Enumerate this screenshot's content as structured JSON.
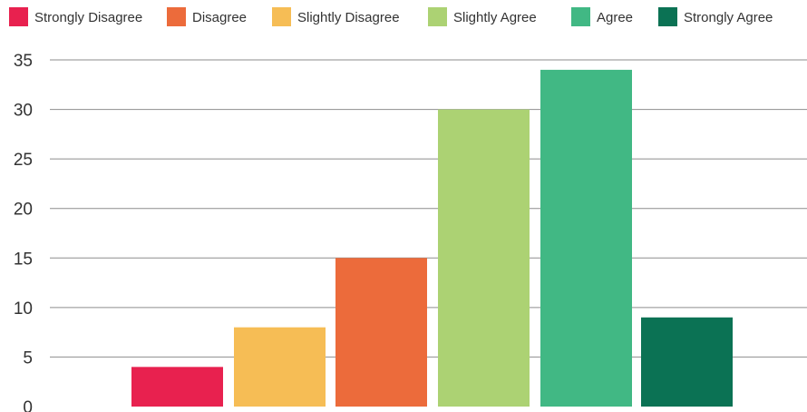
{
  "chart_data": {
    "type": "bar",
    "categories": [
      "Strongly Disagree",
      "Slightly Disagree",
      "Disagree",
      "Slightly Agree",
      "Agree",
      "Strongly Agree"
    ],
    "values": [
      4,
      8,
      15,
      30,
      34,
      9
    ],
    "colors": [
      "#e8214f",
      "#f6bd55",
      "#ec6b3b",
      "#acd273",
      "#41b884",
      "#0b7254"
    ],
    "legend": [
      {
        "label": "Strongly Disagree",
        "color": "#e8214f"
      },
      {
        "label": "Disagree",
        "color": "#ec6b3b"
      },
      {
        "label": "Slightly Disagree",
        "color": "#f6bd55"
      },
      {
        "label": "Slightly Agree",
        "color": "#acd273"
      },
      {
        "label": "Agree",
        "color": "#41b884"
      },
      {
        "label": "Strongly Agree",
        "color": "#0b7254"
      }
    ],
    "legend_position": "top",
    "yticks": [
      0,
      5,
      10,
      15,
      20,
      25,
      30,
      35
    ],
    "ylim": [
      0,
      35
    ],
    "grid": true
  }
}
